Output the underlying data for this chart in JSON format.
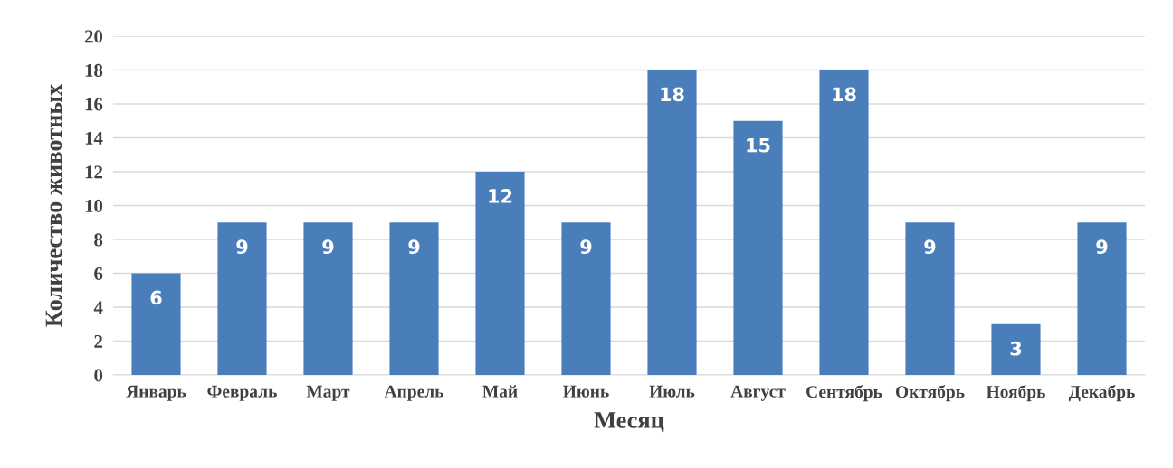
{
  "chart_data": {
    "type": "bar",
    "xlabel": "Месяц",
    "ylabel": "Количество животных",
    "categories": [
      "Январь",
      "Февраль",
      "Март",
      "Апрель",
      "Май",
      "Июнь",
      "Июль",
      "Август",
      "Сентябрь",
      "Октябрь",
      "Ноябрь",
      "Декабрь"
    ],
    "values": [
      6,
      9,
      9,
      9,
      12,
      9,
      18,
      15,
      18,
      9,
      3,
      9
    ],
    "color": "#4a7ebb",
    "ylim": [
      0,
      20
    ],
    "yticks": [
      0,
      2,
      4,
      6,
      8,
      10,
      12,
      14,
      16,
      18,
      20
    ],
    "grid": "y",
    "data_labels": true
  }
}
